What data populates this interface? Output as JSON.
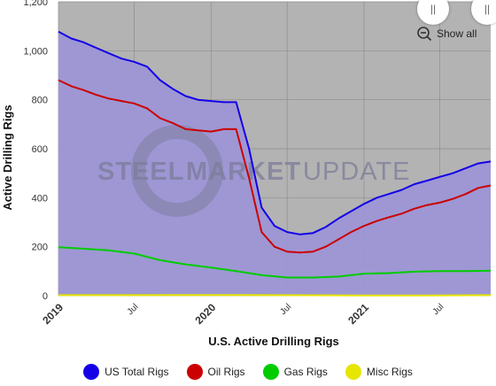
{
  "chart_data": {
    "type": "area",
    "title": "",
    "xlabel": "U.S. Active Drilling Rigs",
    "ylabel": "Active Drilling Rigs",
    "ylim": [
      0,
      1200
    ],
    "yticks": [
      "0",
      "200",
      "400",
      "600",
      "800",
      "1,000",
      "1,200"
    ],
    "xlim": [
      "2019-01-01",
      "2021-10-31"
    ],
    "xticks": [
      {
        "label": "2019",
        "date": "2019-01-01",
        "major": true
      },
      {
        "label": "Jul",
        "date": "2019-07-01",
        "major": false
      },
      {
        "label": "2020",
        "date": "2020-01-01",
        "major": true
      },
      {
        "label": "Jul",
        "date": "2020-07-01",
        "major": false
      },
      {
        "label": "2021",
        "date": "2021-01-01",
        "major": true
      },
      {
        "label": "Jul",
        "date": "2021-07-01",
        "major": false
      }
    ],
    "grid": true,
    "legend_position": "bottom",
    "series": [
      {
        "name": "US Total Rigs",
        "color": "#1400e6",
        "points": [
          [
            "2019-01-01",
            1078
          ],
          [
            "2019-02-01",
            1050
          ],
          [
            "2019-03-01",
            1035
          ],
          [
            "2019-04-01",
            1012
          ],
          [
            "2019-05-01",
            990
          ],
          [
            "2019-06-01",
            968
          ],
          [
            "2019-07-01",
            955
          ],
          [
            "2019-08-01",
            935
          ],
          [
            "2019-09-01",
            880
          ],
          [
            "2019-10-01",
            845
          ],
          [
            "2019-11-01",
            815
          ],
          [
            "2019-12-01",
            800
          ],
          [
            "2020-01-01",
            795
          ],
          [
            "2020-02-01",
            790
          ],
          [
            "2020-03-01",
            790
          ],
          [
            "2020-04-01",
            600
          ],
          [
            "2020-05-01",
            360
          ],
          [
            "2020-06-01",
            285
          ],
          [
            "2020-07-01",
            260
          ],
          [
            "2020-08-01",
            250
          ],
          [
            "2020-09-01",
            256
          ],
          [
            "2020-10-01",
            280
          ],
          [
            "2020-11-01",
            315
          ],
          [
            "2020-12-01",
            345
          ],
          [
            "2021-01-01",
            375
          ],
          [
            "2021-02-01",
            400
          ],
          [
            "2021-03-01",
            415
          ],
          [
            "2021-04-01",
            432
          ],
          [
            "2021-05-01",
            455
          ],
          [
            "2021-06-01",
            470
          ],
          [
            "2021-07-01",
            485
          ],
          [
            "2021-08-01",
            500
          ],
          [
            "2021-09-01",
            520
          ],
          [
            "2021-10-01",
            540
          ],
          [
            "2021-10-31",
            548
          ]
        ]
      },
      {
        "name": "Oil Rigs",
        "color": "#cc0000",
        "points": [
          [
            "2019-01-01",
            880
          ],
          [
            "2019-02-01",
            855
          ],
          [
            "2019-03-01",
            840
          ],
          [
            "2019-04-01",
            820
          ],
          [
            "2019-05-01",
            805
          ],
          [
            "2019-06-01",
            795
          ],
          [
            "2019-07-01",
            785
          ],
          [
            "2019-08-01",
            765
          ],
          [
            "2019-09-01",
            725
          ],
          [
            "2019-10-01",
            705
          ],
          [
            "2019-11-01",
            680
          ],
          [
            "2019-12-01",
            675
          ],
          [
            "2020-01-01",
            670
          ],
          [
            "2020-02-01",
            680
          ],
          [
            "2020-03-01",
            680
          ],
          [
            "2020-04-01",
            480
          ],
          [
            "2020-05-01",
            260
          ],
          [
            "2020-06-01",
            200
          ],
          [
            "2020-07-01",
            180
          ],
          [
            "2020-08-01",
            176
          ],
          [
            "2020-09-01",
            180
          ],
          [
            "2020-10-01",
            200
          ],
          [
            "2020-11-01",
            230
          ],
          [
            "2020-12-01",
            260
          ],
          [
            "2021-01-01",
            285
          ],
          [
            "2021-02-01",
            305
          ],
          [
            "2021-03-01",
            320
          ],
          [
            "2021-04-01",
            335
          ],
          [
            "2021-05-01",
            355
          ],
          [
            "2021-06-01",
            370
          ],
          [
            "2021-07-01",
            380
          ],
          [
            "2021-08-01",
            395
          ],
          [
            "2021-09-01",
            415
          ],
          [
            "2021-10-01",
            440
          ],
          [
            "2021-10-31",
            450
          ]
        ]
      },
      {
        "name": "Gas Rigs",
        "color": "#00cc00",
        "points": [
          [
            "2019-01-01",
            198
          ],
          [
            "2019-03-01",
            192
          ],
          [
            "2019-05-01",
            185
          ],
          [
            "2019-07-01",
            172
          ],
          [
            "2019-09-01",
            145
          ],
          [
            "2019-11-01",
            128
          ],
          [
            "2020-01-01",
            115
          ],
          [
            "2020-03-01",
            100
          ],
          [
            "2020-05-01",
            84
          ],
          [
            "2020-07-01",
            74
          ],
          [
            "2020-09-01",
            74
          ],
          [
            "2020-11-01",
            78
          ],
          [
            "2021-01-01",
            90
          ],
          [
            "2021-03-01",
            92
          ],
          [
            "2021-05-01",
            98
          ],
          [
            "2021-07-01",
            100
          ],
          [
            "2021-09-01",
            100
          ],
          [
            "2021-10-31",
            102
          ]
        ]
      },
      {
        "name": "Misc Rigs",
        "color": "#e6e600",
        "points": [
          [
            "2019-01-01",
            2
          ],
          [
            "2019-06-01",
            2
          ],
          [
            "2020-01-01",
            3
          ],
          [
            "2020-06-01",
            2
          ],
          [
            "2021-01-01",
            1
          ],
          [
            "2021-06-01",
            1
          ],
          [
            "2021-10-31",
            2
          ]
        ]
      }
    ]
  },
  "toolbar": {
    "show_all_label": "Show all",
    "handle_glyph": "||"
  },
  "watermark": {
    "word1": "STEEL",
    "word2": "MARKET",
    "word3": "UPDATE"
  },
  "colors": {
    "plot_background": "#b3b3b3",
    "area_fill": "#9d96d6"
  }
}
